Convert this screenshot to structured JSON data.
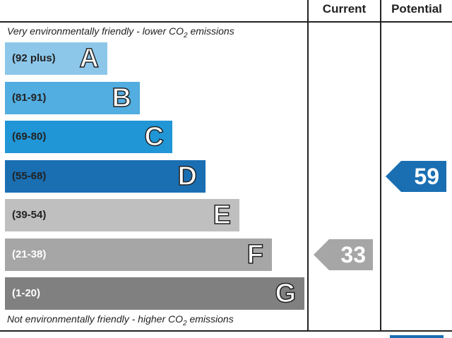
{
  "header": {
    "current_label": "Current",
    "potential_label": "Potential"
  },
  "notes": {
    "top": "Very environmentally friendly - lower C",
    "top_sym": "O",
    "top_sub": "2",
    "top_tail": " emissions",
    "bottom": "Not environmentally friendly - higher C",
    "bottom_sym": "O",
    "bottom_sub": "2",
    "bottom_tail": " emissions"
  },
  "chart_data": {
    "type": "bar",
    "bands": [
      {
        "range": "(92 plus)",
        "letter": "A",
        "color": "#8cc7ea",
        "range_color": "#222222"
      },
      {
        "range": "(81-91)",
        "letter": "B",
        "color": "#52ade0",
        "range_color": "#222222"
      },
      {
        "range": "(69-80)",
        "letter": "C",
        "color": "#2196d6",
        "range_color": "#222222"
      },
      {
        "range": "(55-68)",
        "letter": "D",
        "color": "#1a6fb3",
        "range_color": "#222222"
      },
      {
        "range": "(39-54)",
        "letter": "E",
        "color": "#bfbfbf",
        "range_color": "#222222"
      },
      {
        "range": "(21-38)",
        "letter": "F",
        "color": "#a6a6a6",
        "range_color": "#ffffff"
      },
      {
        "range": "(1-20)",
        "letter": "G",
        "color": "#808080",
        "range_color": "#ffffff"
      }
    ],
    "current": {
      "value": 33,
      "band": "F",
      "color": "#a6a6a6"
    },
    "potential": {
      "value": 59,
      "band": "D",
      "color": "#1a6fb3"
    }
  }
}
